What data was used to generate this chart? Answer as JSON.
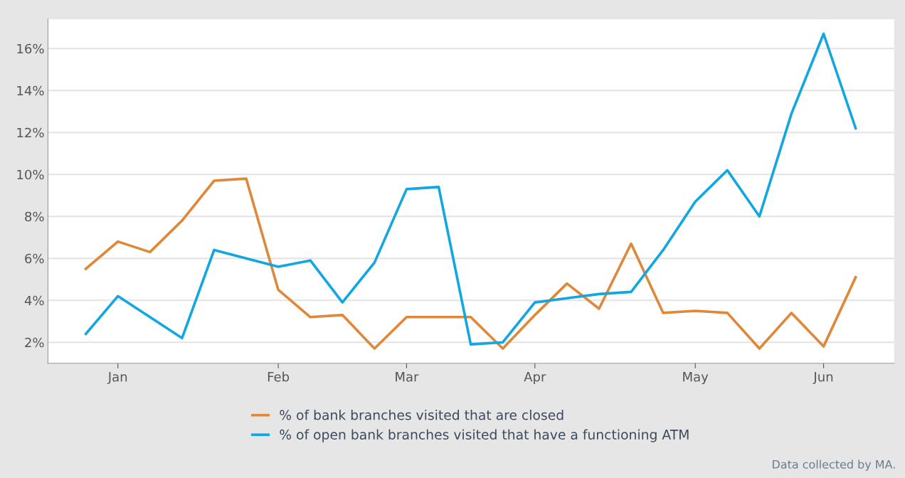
{
  "chart_data": {
    "type": "line",
    "categories": [
      null,
      "Jan",
      null,
      null,
      null,
      null,
      "Feb",
      null,
      null,
      null,
      "Mar",
      null,
      null,
      null,
      "Apr",
      null,
      null,
      null,
      null,
      "May",
      null,
      null,
      null,
      "Jun",
      null
    ],
    "series": [
      {
        "name": "% of bank branches visited that are closed",
        "color": "#e0883a",
        "values": [
          5.5,
          6.8,
          6.3,
          7.8,
          9.7,
          9.8,
          4.5,
          3.2,
          3.3,
          1.7,
          3.2,
          3.2,
          3.2,
          1.7,
          3.3,
          4.8,
          3.6,
          6.7,
          3.4,
          3.5,
          3.4,
          1.7,
          3.4,
          1.8,
          5.1
        ]
      },
      {
        "name": "% of open bank branches visited that have a functioning ATM",
        "color": "#12a7e0",
        "values": [
          2.4,
          4.2,
          3.2,
          2.2,
          6.4,
          6.0,
          5.6,
          5.9,
          3.9,
          5.8,
          9.3,
          9.4,
          1.9,
          2.0,
          3.9,
          4.1,
          4.3,
          4.4,
          6.4,
          8.7,
          10.2,
          8.0,
          12.9,
          16.7,
          12.2
        ]
      }
    ],
    "ylim": [
      1.0,
      17.4
    ],
    "yticks": [
      {
        "value": 2,
        "label": "2%"
      },
      {
        "value": 4,
        "label": "4%"
      },
      {
        "value": 6,
        "label": "6%"
      },
      {
        "value": 8,
        "label": "8%"
      },
      {
        "value": 10,
        "label": "10%"
      },
      {
        "value": 12,
        "label": "12%"
      },
      {
        "value": 14,
        "label": "14%"
      },
      {
        "value": 16,
        "label": "16%"
      }
    ],
    "grid": "y",
    "legend": "bottom",
    "marker": "none",
    "line_style": "solid",
    "annotations": [
      "Data collected by MA."
    ]
  }
}
